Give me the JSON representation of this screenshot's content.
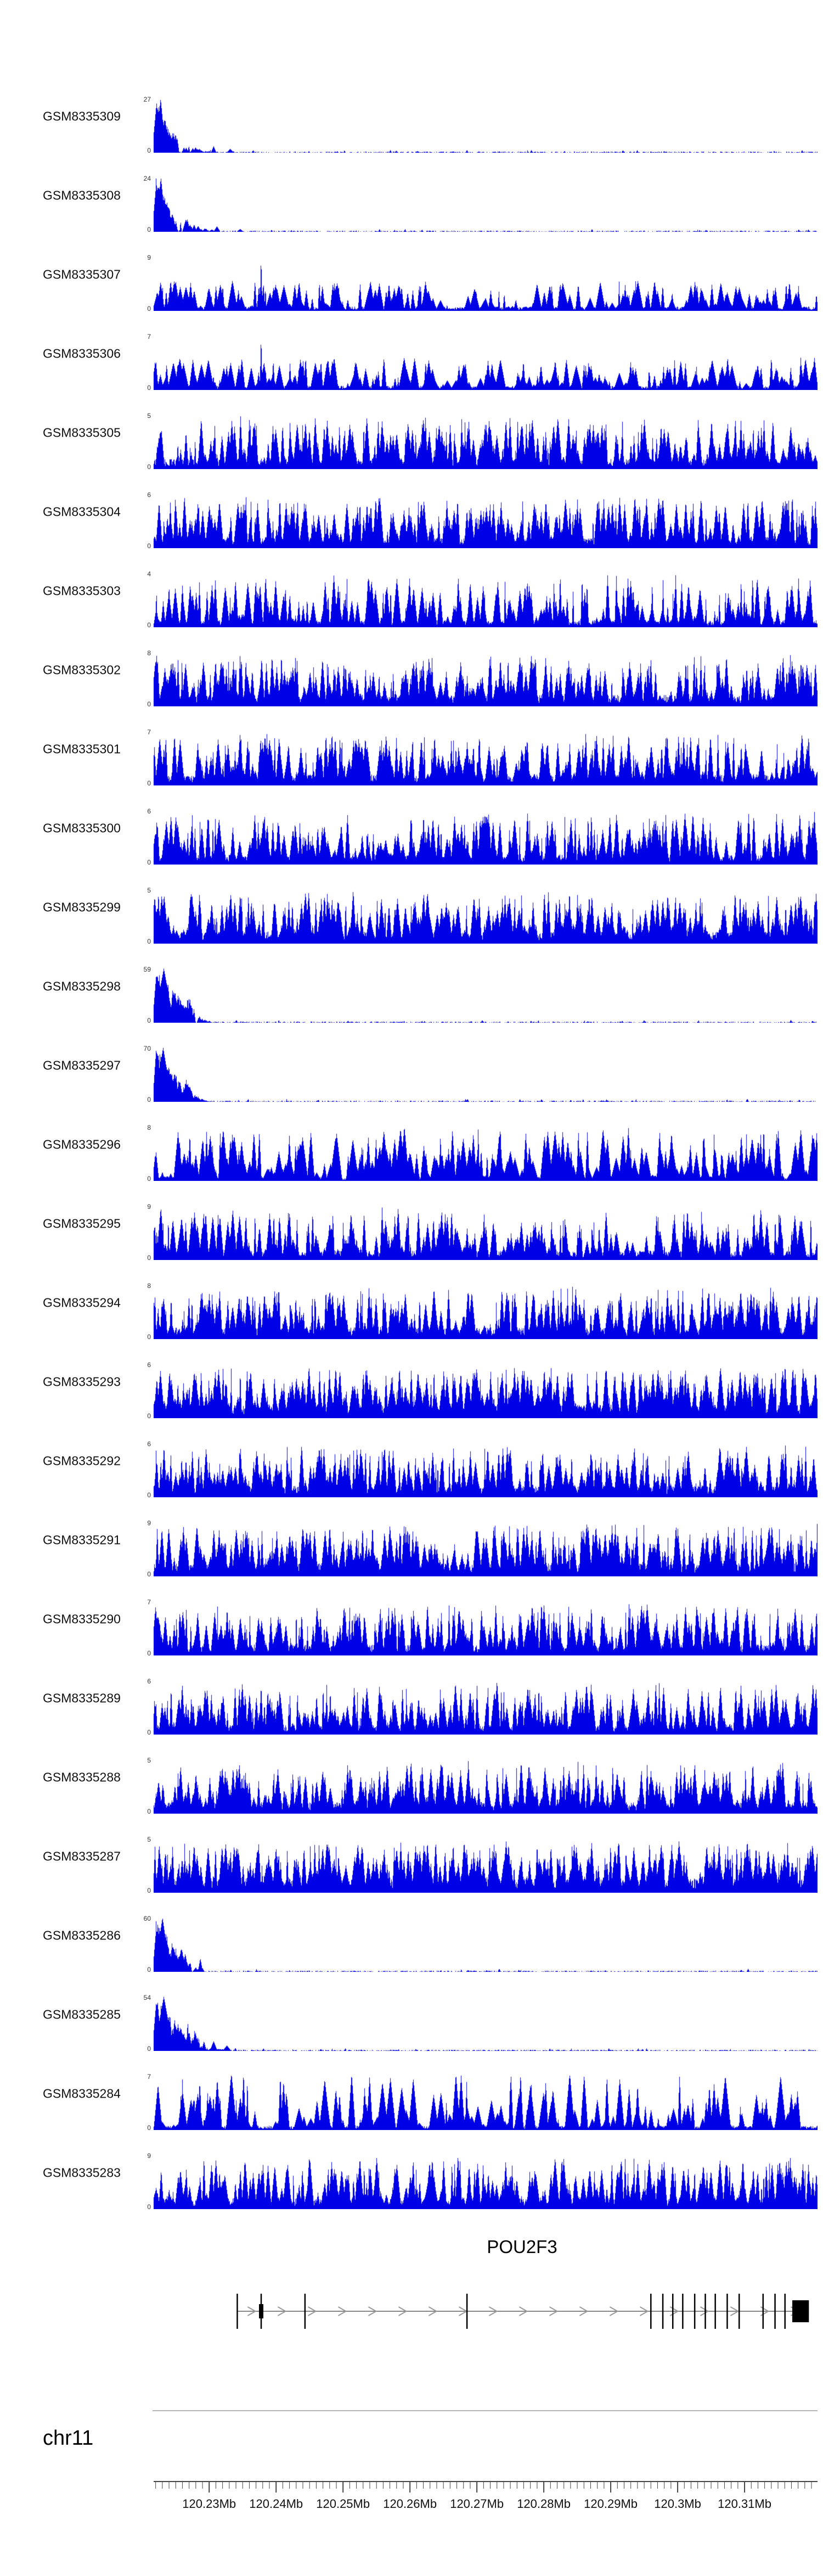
{
  "chart_data": {
    "type": "area",
    "signal_color": "#0000e6",
    "region": {
      "chromosome": "chr11",
      "start_mb": 120.2217,
      "end_mb": 120.3209
    },
    "tracks": [
      {
        "name": "GSM8335309",
        "ymax": 27,
        "ymin": 0,
        "profile": {
          "kind": "peak",
          "cluster": 0.026,
          "tail": 0.02,
          "bumps": [
            {
              "x": 0.09,
              "h": 0.12
            },
            {
              "x": 0.115,
              "h": 0.07
            }
          ]
        }
      },
      {
        "name": "GSM8335308",
        "ymax": 24,
        "ymin": 0,
        "profile": {
          "kind": "peak",
          "cluster": 0.028,
          "tail": 0.022,
          "bumps": [
            {
              "x": 0.095,
              "h": 0.1
            },
            {
              "x": 0.13,
              "h": 0.05
            }
          ]
        }
      },
      {
        "name": "GSM8335307",
        "ymax": 9,
        "ymin": 0,
        "profile": {
          "kind": "spiky",
          "density": 0.22,
          "maxh": 0.5,
          "tall_spike_x": 0.1615
        }
      },
      {
        "name": "GSM8335306",
        "ymax": 7,
        "ymin": 0,
        "profile": {
          "kind": "spiky",
          "density": 0.26,
          "maxh": 0.55,
          "tall_spike_x": 0.1615
        }
      },
      {
        "name": "GSM8335305",
        "ymax": 5,
        "ymin": 0,
        "profile": {
          "kind": "dense",
          "fill": 0.38
        }
      },
      {
        "name": "GSM8335304",
        "ymax": 6,
        "ymin": 0,
        "profile": {
          "kind": "dense",
          "fill": 0.36
        }
      },
      {
        "name": "GSM8335303",
        "ymax": 4,
        "ymin": 0,
        "profile": {
          "kind": "dense",
          "fill": 0.26
        }
      },
      {
        "name": "GSM8335302",
        "ymax": 8,
        "ymin": 0,
        "profile": {
          "kind": "dense",
          "fill": 0.42
        }
      },
      {
        "name": "GSM8335301",
        "ymax": 7,
        "ymin": 0,
        "profile": {
          "kind": "dense",
          "fill": 0.4
        }
      },
      {
        "name": "GSM8335300",
        "ymax": 6,
        "ymin": 0,
        "profile": {
          "kind": "dense",
          "fill": 0.36
        }
      },
      {
        "name": "GSM8335299",
        "ymax": 5,
        "ymin": 0,
        "profile": {
          "kind": "dense",
          "fill": 0.44
        }
      },
      {
        "name": "GSM8335298",
        "ymax": 59,
        "ymin": 0,
        "profile": {
          "kind": "peak",
          "cluster": 0.05,
          "tail": 0.012,
          "bumps": []
        }
      },
      {
        "name": "GSM8335297",
        "ymax": 70,
        "ymin": 0,
        "profile": {
          "kind": "peak",
          "cluster": 0.045,
          "tail": 0.012,
          "bumps": []
        }
      },
      {
        "name": "GSM8335296",
        "ymax": 8,
        "ymin": 0,
        "profile": {
          "kind": "spiky",
          "density": 0.3,
          "maxh": 0.95
        }
      },
      {
        "name": "GSM8335295",
        "ymax": 9,
        "ymin": 0,
        "profile": {
          "kind": "dense",
          "fill": 0.34
        }
      },
      {
        "name": "GSM8335294",
        "ymax": 8,
        "ymin": 0,
        "profile": {
          "kind": "dense",
          "fill": 0.42
        }
      },
      {
        "name": "GSM8335293",
        "ymax": 6,
        "ymin": 0,
        "profile": {
          "kind": "dense",
          "fill": 0.5
        }
      },
      {
        "name": "GSM8335292",
        "ymax": 6,
        "ymin": 0,
        "profile": {
          "kind": "dense",
          "fill": 0.42
        }
      },
      {
        "name": "GSM8335291",
        "ymax": 9,
        "ymin": 0,
        "profile": {
          "kind": "dense",
          "fill": 0.48
        }
      },
      {
        "name": "GSM8335290",
        "ymax": 7,
        "ymin": 0,
        "profile": {
          "kind": "dense",
          "fill": 0.4
        }
      },
      {
        "name": "GSM8335289",
        "ymax": 6,
        "ymin": 0,
        "profile": {
          "kind": "dense",
          "fill": 0.36
        }
      },
      {
        "name": "GSM8335288",
        "ymax": 5,
        "ymin": 0,
        "profile": {
          "kind": "dense",
          "fill": 0.42
        }
      },
      {
        "name": "GSM8335287",
        "ymax": 5,
        "ymin": 0,
        "profile": {
          "kind": "dense",
          "fill": 0.52
        }
      },
      {
        "name": "GSM8335286",
        "ymax": 60,
        "ymin": 0,
        "profile": {
          "kind": "peak",
          "cluster": 0.04,
          "tail": 0.015,
          "bumps": [
            {
              "x": 0.07,
              "h": 0.25
            }
          ]
        }
      },
      {
        "name": "GSM8335285",
        "ymax": 54,
        "ymin": 0,
        "profile": {
          "kind": "peak",
          "cluster": 0.05,
          "tail": 0.02,
          "bumps": [
            {
              "x": 0.09,
              "h": 0.18
            },
            {
              "x": 0.11,
              "h": 0.1
            }
          ]
        }
      },
      {
        "name": "GSM8335284",
        "ymax": 7,
        "ymin": 0,
        "profile": {
          "kind": "spiky",
          "density": 0.18,
          "maxh": 1.0
        }
      },
      {
        "name": "GSM8335283",
        "ymax": 9,
        "ymin": 0,
        "profile": {
          "kind": "dense",
          "fill": 0.4
        }
      }
    ],
    "gene_track": {
      "title": "POU2F3",
      "strand_arrows": "right",
      "span_f": [
        0.126,
        0.987
      ],
      "exons_f": [
        0.126,
        0.162,
        0.228,
        0.472,
        0.749,
        0.767,
        0.782,
        0.797,
        0.815,
        0.831,
        0.846,
        0.864,
        0.882,
        0.918,
        0.936,
        0.951
      ],
      "cds_mark_f": 0.162,
      "utr_box_f": [
        0.962,
        0.987
      ]
    },
    "axis": {
      "chrom_label": "chr11",
      "minor_tick_interval_mb": 0.001,
      "major_ticks": [
        {
          "value": 120.23,
          "label": "120.23Mb"
        },
        {
          "value": 120.24,
          "label": "120.24Mb"
        },
        {
          "value": 120.25,
          "label": "120.25Mb"
        },
        {
          "value": 120.26,
          "label": "120.26Mb"
        },
        {
          "value": 120.27,
          "label": "120.27Mb"
        },
        {
          "value": 120.28,
          "label": "120.28Mb"
        },
        {
          "value": 120.29,
          "label": "120.29Mb"
        },
        {
          "value": 120.3,
          "label": "120.3Mb"
        },
        {
          "value": 120.31,
          "label": "120.31Mb"
        }
      ]
    }
  }
}
